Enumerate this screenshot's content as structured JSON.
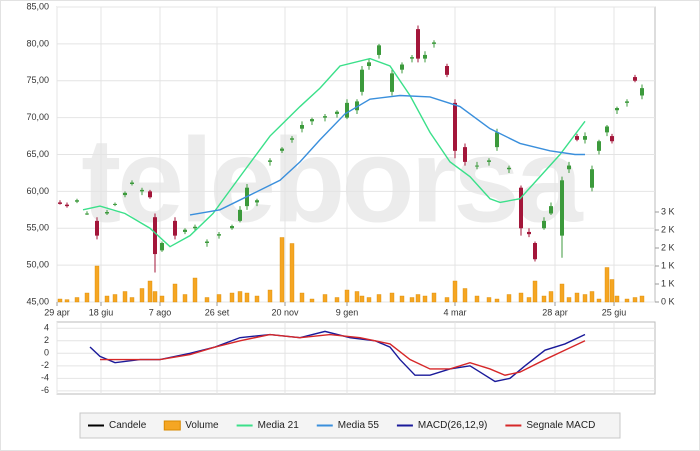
{
  "watermark": "teleborsa",
  "chart_data": [
    {
      "type": "candlestick",
      "name": "Candele",
      "color": "#000000",
      "up_color": "#3c9a3c",
      "down_color": "#a3163a",
      "x": [
        3,
        10,
        20,
        30,
        40,
        50,
        58,
        68,
        75,
        85,
        93,
        98,
        105,
        118,
        128,
        138,
        150,
        162,
        175,
        183,
        190,
        200,
        213,
        225,
        235,
        245,
        255,
        268,
        280,
        290,
        300,
        305,
        312,
        322,
        335,
        345,
        355,
        361,
        368,
        377,
        390,
        398,
        408,
        420,
        432,
        440,
        452,
        464,
        472,
        478,
        487,
        494,
        505,
        512,
        520,
        528,
        535,
        542,
        550,
        555,
        560,
        570,
        578,
        585
      ],
      "open": [
        58.5,
        58.2,
        58.6,
        57.0,
        56.0,
        57.0,
        58.2,
        59.5,
        61.0,
        60.0,
        60.0,
        56.5,
        52.0,
        56.0,
        54.5,
        55.0,
        53.0,
        54.0,
        55.0,
        56.0,
        58.0,
        58.5,
        64.0,
        65.5,
        67.0,
        68.5,
        69.5,
        70.0,
        70.5,
        70.0,
        71.0,
        73.5,
        77.0,
        78.5,
        73.5,
        76.5,
        78.0,
        82.0,
        78.0,
        80.0,
        77.0,
        72.0,
        66.0,
        63.5,
        64.0,
        66.0,
        63.0,
        60.5,
        54.5,
        53.0,
        55.0,
        57.0,
        54.0,
        63.0,
        67.5,
        67.0,
        60.5,
        65.5,
        68.0,
        67.5,
        71.0,
        72.0,
        75.5,
        73.0
      ],
      "high": [
        58.8,
        58.5,
        59.0,
        57.3,
        56.5,
        57.5,
        58.5,
        60.0,
        61.5,
        60.5,
        60.2,
        57.0,
        53.2,
        56.5,
        55.0,
        55.5,
        53.5,
        54.5,
        55.5,
        58.0,
        61.0,
        59.0,
        64.5,
        66.0,
        67.5,
        69.5,
        70.0,
        70.5,
        71.0,
        72.5,
        72.5,
        77.0,
        78.0,
        80.0,
        76.5,
        77.5,
        78.5,
        82.5,
        79.0,
        80.5,
        77.3,
        72.5,
        66.5,
        64.0,
        64.5,
        68.5,
        63.5,
        60.8,
        55.0,
        53.2,
        56.5,
        58.5,
        62.0,
        64.0,
        67.8,
        68.0,
        63.5,
        67.0,
        69.0,
        67.8,
        71.5,
        72.5,
        75.8,
        74.5
      ],
      "low": [
        58.2,
        57.8,
        58.4,
        56.8,
        53.5,
        56.8,
        58.0,
        59.2,
        60.8,
        59.5,
        59.0,
        49.0,
        51.8,
        53.5,
        54.2,
        54.6,
        52.5,
        53.6,
        54.8,
        55.8,
        57.5,
        58.0,
        63.5,
        65.2,
        66.6,
        68.0,
        69.0,
        69.5,
        70.0,
        69.8,
        70.5,
        73.0,
        76.5,
        78.0,
        73.0,
        76.0,
        77.5,
        77.5,
        77.5,
        79.5,
        75.5,
        64.5,
        63.5,
        63.0,
        63.5,
        65.5,
        62.5,
        54.0,
        53.8,
        50.5,
        54.8,
        56.8,
        51.0,
        62.5,
        66.8,
        66.5,
        60.0,
        65.0,
        67.5,
        66.5,
        70.5,
        71.5,
        74.8,
        72.5
      ],
      "close": [
        58.3,
        58.0,
        58.8,
        57.0,
        54.0,
        57.2,
        58.3,
        59.8,
        61.2,
        60.2,
        59.2,
        51.5,
        53.0,
        54.0,
        54.8,
        55.2,
        53.2,
        54.2,
        55.3,
        57.5,
        60.5,
        58.8,
        64.2,
        65.8,
        67.2,
        69.0,
        69.8,
        70.2,
        70.8,
        72.0,
        72.2,
        76.5,
        77.5,
        79.8,
        76.0,
        77.2,
        78.2,
        78.0,
        78.5,
        80.2,
        75.8,
        65.5,
        64.0,
        63.5,
        64.2,
        68.0,
        63.2,
        55.0,
        54.2,
        50.8,
        56.0,
        58.0,
        61.5,
        63.5,
        67.0,
        67.5,
        63.0,
        66.8,
        68.8,
        66.8,
        71.3,
        72.2,
        75.0,
        74.0
      ],
      "volume": {
        "name": "Volume",
        "color": "#f5a623",
        "axis": "y2",
        "values": [
          100,
          80,
          150,
          300,
          1200,
          200,
          250,
          350,
          150,
          450,
          700,
          350,
          200,
          600,
          250,
          800,
          150,
          250,
          300,
          350,
          300,
          200,
          400,
          2150,
          1950,
          300,
          100,
          250,
          150,
          400,
          350,
          200,
          150,
          250,
          300,
          200,
          150,
          250,
          200,
          300,
          150,
          700,
          450,
          200,
          150,
          100,
          250,
          300,
          150,
          700,
          200,
          350,
          600,
          150,
          300,
          250,
          350,
          100,
          1150,
          750,
          200,
          100,
          150,
          200
        ]
      },
      "series": [
        {
          "name": "Media 21",
          "color": "#3be08a",
          "x": [
            26,
            43,
            68,
            93,
            113,
            133,
            156,
            183,
            213,
            243,
            263,
            283,
            313,
            333,
            353,
            373,
            393,
            413,
            433,
            443,
            463,
            483,
            503,
            528
          ],
          "values": [
            57.5,
            58,
            57,
            55,
            52.5,
            54,
            57,
            62,
            67.5,
            71.5,
            74,
            77,
            78,
            77,
            73,
            68,
            64,
            62,
            59,
            58.5,
            59,
            62,
            65,
            69.5
          ]
        },
        {
          "name": "Media 55",
          "color": "#3a8fdc",
          "x": [
            133,
            163,
            193,
            223,
            243,
            263,
            288,
            313,
            343,
            373,
            403,
            433,
            463,
            493,
            518,
            528
          ],
          "values": [
            56.8,
            57.5,
            59.5,
            61.5,
            64,
            67,
            70.5,
            72.5,
            73,
            72.8,
            71.5,
            68.5,
            66.5,
            65.5,
            65,
            65
          ]
        }
      ],
      "xlim": [
        0,
        598
      ],
      "xticks": [
        {
          "value": 0,
          "label": "29 apr"
        },
        {
          "value": 44,
          "label": "18 giu"
        },
        {
          "value": 103,
          "label": "7 ago"
        },
        {
          "value": 160,
          "label": "26 set"
        },
        {
          "value": 228,
          "label": "20 nov"
        },
        {
          "value": 290,
          "label": "9 gen"
        },
        {
          "value": 398,
          "label": "4 mar"
        },
        {
          "value": 498,
          "label": "28 apr"
        },
        {
          "value": 557,
          "label": "25 giu"
        }
      ],
      "ylim": [
        45,
        85
      ],
      "yticks": [
        {
          "value": 45,
          "label": "45,00"
        },
        {
          "value": 50,
          "label": "50,00"
        },
        {
          "value": 55,
          "label": "55,00"
        },
        {
          "value": 60,
          "label": "60,00"
        },
        {
          "value": 65,
          "label": "65,00"
        },
        {
          "value": 70,
          "label": "70,00"
        },
        {
          "value": 75,
          "label": "75,00"
        },
        {
          "value": 80,
          "label": "80,00"
        },
        {
          "value": 85,
          "label": "85,00"
        }
      ],
      "y2lim": [
        0,
        9833
      ],
      "y2ticks": [
        {
          "value": 0,
          "label": "0 K"
        },
        {
          "value": 600,
          "label": "1 K"
        },
        {
          "value": 1200,
          "label": "1 K"
        },
        {
          "value": 1800,
          "label": "2 K"
        },
        {
          "value": 2400,
          "label": "2 K"
        },
        {
          "value": 3000,
          "label": "3 K"
        }
      ],
      "grid": true
    },
    {
      "type": "line",
      "series": [
        {
          "name": "MACD(26,12,9)",
          "color": "#1a1a9a",
          "x": [
            33,
            43,
            58,
            83,
            103,
            133,
            158,
            183,
            213,
            243,
            268,
            293,
            318,
            333,
            343,
            358,
            373,
            393,
            413,
            423,
            438,
            453,
            468,
            488,
            508,
            528
          ],
          "values": [
            1,
            -0.5,
            -1.5,
            -1,
            -1,
            0,
            1,
            2.5,
            3,
            2.5,
            3.5,
            2.5,
            2,
            1,
            -1,
            -3.5,
            -3.5,
            -2.5,
            -2,
            -3,
            -4.5,
            -4,
            -2,
            0.5,
            1.5,
            3
          ]
        },
        {
          "name": "Segnale MACD",
          "color": "#d62728",
          "x": [
            43,
            73,
            103,
            133,
            158,
            183,
            213,
            243,
            273,
            303,
            333,
            353,
            373,
            393,
            413,
            433,
            448,
            463,
            488,
            508,
            528
          ],
          "values": [
            -1,
            -1,
            -1,
            -0.2,
            1,
            2,
            3,
            2.5,
            3,
            2.5,
            1.5,
            -1,
            -2.5,
            -2.5,
            -1.5,
            -2.5,
            -3.5,
            -3,
            -1,
            0.5,
            2
          ]
        }
      ],
      "xlim": [
        0,
        598
      ],
      "ylim": [
        -6.5,
        5
      ],
      "yticks": [
        4,
        2,
        0,
        -2,
        -4,
        -6
      ],
      "grid": true
    }
  ]
}
